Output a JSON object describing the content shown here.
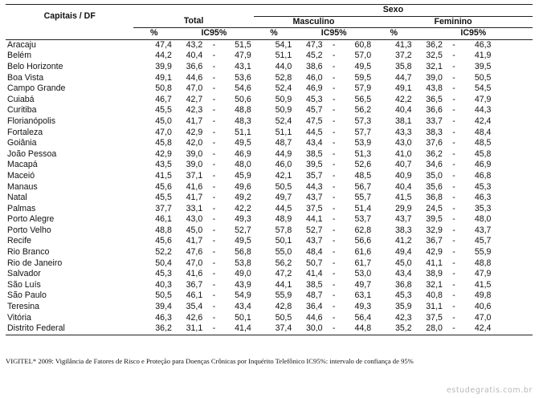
{
  "headers": {
    "capitais": "Capitais / DF",
    "sexo": "Sexo",
    "total": "Total",
    "masculino": "Masculino",
    "feminino": "Feminino",
    "pct": "%",
    "ic": "IC95%"
  },
  "rows": [
    {
      "name": "Aracaju",
      "t": [
        "47,4",
        "43,2",
        "51,5"
      ],
      "m": [
        "54,1",
        "47,3",
        "60,8"
      ],
      "f": [
        "41,3",
        "36,2",
        "46,3"
      ]
    },
    {
      "name": "Belém",
      "t": [
        "44,2",
        "40,4",
        "47,9"
      ],
      "m": [
        "51,1",
        "45,2",
        "57,0"
      ],
      "f": [
        "37,2",
        "32,5",
        "41,9"
      ]
    },
    {
      "name": "Belo Horizonte",
      "t": [
        "39,9",
        "36,6",
        "43,1"
      ],
      "m": [
        "44,0",
        "38,6",
        "49,5"
      ],
      "f": [
        "35,8",
        "32,1",
        "39,5"
      ]
    },
    {
      "name": "Boa Vista",
      "t": [
        "49,1",
        "44,6",
        "53,6"
      ],
      "m": [
        "52,8",
        "46,0",
        "59,5"
      ],
      "f": [
        "44,7",
        "39,0",
        "50,5"
      ]
    },
    {
      "name": "Campo Grande",
      "t": [
        "50,8",
        "47,0",
        "54,6"
      ],
      "m": [
        "52,4",
        "46,9",
        "57,9"
      ],
      "f": [
        "49,1",
        "43,8",
        "54,5"
      ]
    },
    {
      "name": "Cuiabá",
      "t": [
        "46,7",
        "42,7",
        "50,6"
      ],
      "m": [
        "50,9",
        "45,3",
        "56,5"
      ],
      "f": [
        "42,2",
        "36,5",
        "47,9"
      ]
    },
    {
      "name": "Curitiba",
      "t": [
        "45,5",
        "42,3",
        "48,8"
      ],
      "m": [
        "50,9",
        "45,7",
        "56,2"
      ],
      "f": [
        "40,4",
        "36,6",
        "44,3"
      ]
    },
    {
      "name": "Florianópolis",
      "t": [
        "45,0",
        "41,7",
        "48,3"
      ],
      "m": [
        "52,4",
        "47,5",
        "57,3"
      ],
      "f": [
        "38,1",
        "33,7",
        "42,4"
      ]
    },
    {
      "name": "Fortaleza",
      "t": [
        "47,0",
        "42,9",
        "51,1"
      ],
      "m": [
        "51,1",
        "44,5",
        "57,7"
      ],
      "f": [
        "43,3",
        "38,3",
        "48,4"
      ]
    },
    {
      "name": "Goiânia",
      "t": [
        "45,8",
        "42,0",
        "49,5"
      ],
      "m": [
        "48,7",
        "43,4",
        "53,9"
      ],
      "f": [
        "43,0",
        "37,6",
        "48,5"
      ]
    },
    {
      "name": "João Pessoa",
      "t": [
        "42,9",
        "39,0",
        "46,9"
      ],
      "m": [
        "44,9",
        "38,5",
        "51,3"
      ],
      "f": [
        "41,0",
        "36,2",
        "45,8"
      ]
    },
    {
      "name": "Macapá",
      "t": [
        "43,5",
        "39,0",
        "48,0"
      ],
      "m": [
        "46,0",
        "39,5",
        "52,6"
      ],
      "f": [
        "40,7",
        "34,6",
        "46,9"
      ]
    },
    {
      "name": "Maceió",
      "t": [
        "41,5",
        "37,1",
        "45,9"
      ],
      "m": [
        "42,1",
        "35,7",
        "48,5"
      ],
      "f": [
        "40,9",
        "35,0",
        "46,8"
      ]
    },
    {
      "name": "Manaus",
      "t": [
        "45,6",
        "41,6",
        "49,6"
      ],
      "m": [
        "50,5",
        "44,3",
        "56,7"
      ],
      "f": [
        "40,4",
        "35,6",
        "45,3"
      ]
    },
    {
      "name": "Natal",
      "t": [
        "45,5",
        "41,7",
        "49,2"
      ],
      "m": [
        "49,7",
        "43,7",
        "55,7"
      ],
      "f": [
        "41,5",
        "36,8",
        "46,3"
      ]
    },
    {
      "name": "Palmas",
      "t": [
        "37,7",
        "33,1",
        "42,2"
      ],
      "m": [
        "44,5",
        "37,5",
        "51,4"
      ],
      "f": [
        "29,9",
        "24,5",
        "35,3"
      ]
    },
    {
      "name": "Porto Alegre",
      "t": [
        "46,1",
        "43,0",
        "49,3"
      ],
      "m": [
        "48,9",
        "44,1",
        "53,7"
      ],
      "f": [
        "43,7",
        "39,5",
        "48,0"
      ]
    },
    {
      "name": "Porto Velho",
      "t": [
        "48,8",
        "45,0",
        "52,7"
      ],
      "m": [
        "57,8",
        "52,7",
        "62,8"
      ],
      "f": [
        "38,3",
        "32,9",
        "43,7"
      ]
    },
    {
      "name": "Recife",
      "t": [
        "45,6",
        "41,7",
        "49,5"
      ],
      "m": [
        "50,1",
        "43,7",
        "56,6"
      ],
      "f": [
        "41,2",
        "36,7",
        "45,7"
      ]
    },
    {
      "name": "Rio Branco",
      "t": [
        "52,2",
        "47,6",
        "56,8"
      ],
      "m": [
        "55,0",
        "48,4",
        "61,6"
      ],
      "f": [
        "49,4",
        "42,9",
        "55,9"
      ]
    },
    {
      "name": "Rio de Janeiro",
      "t": [
        "50,4",
        "47,0",
        "53,8"
      ],
      "m": [
        "56,2",
        "50,7",
        "61,7"
      ],
      "f": [
        "45,0",
        "41,1",
        "48,8"
      ]
    },
    {
      "name": "Salvador",
      "t": [
        "45,3",
        "41,6",
        "49,0"
      ],
      "m": [
        "47,2",
        "41,4",
        "53,0"
      ],
      "f": [
        "43,4",
        "38,9",
        "47,9"
      ]
    },
    {
      "name": "São Luís",
      "t": [
        "40,3",
        "36,7",
        "43,9"
      ],
      "m": [
        "44,1",
        "38,5",
        "49,7"
      ],
      "f": [
        "36,8",
        "32,1",
        "41,5"
      ]
    },
    {
      "name": "São Paulo",
      "t": [
        "50,5",
        "46,1",
        "54,9"
      ],
      "m": [
        "55,9",
        "48,7",
        "63,1"
      ],
      "f": [
        "45,3",
        "40,8",
        "49,8"
      ]
    },
    {
      "name": "Teresina",
      "t": [
        "39,4",
        "35,4",
        "43,4"
      ],
      "m": [
        "42,8",
        "36,4",
        "49,3"
      ],
      "f": [
        "35,9",
        "31,1",
        "40,6"
      ]
    },
    {
      "name": "Vitória",
      "t": [
        "46,3",
        "42,6",
        "50,1"
      ],
      "m": [
        "50,5",
        "44,6",
        "56,4"
      ],
      "f": [
        "42,3",
        "37,5",
        "47,0"
      ]
    },
    {
      "name": "Distrito Federal",
      "t": [
        "36,2",
        "31,1",
        "41,4"
      ],
      "m": [
        "37,4",
        "30,0",
        "44,8"
      ],
      "f": [
        "35,2",
        "28,0",
        "42,4"
      ]
    }
  ],
  "footnote": "VIGITEL* 2009: Vigilância de Fatores de Risco e Proteção para Doenças Crônicas por Inquérito Telefônico IC95%: intervalo de confiança de 95%",
  "watermark": "estudegratis.com.br"
}
